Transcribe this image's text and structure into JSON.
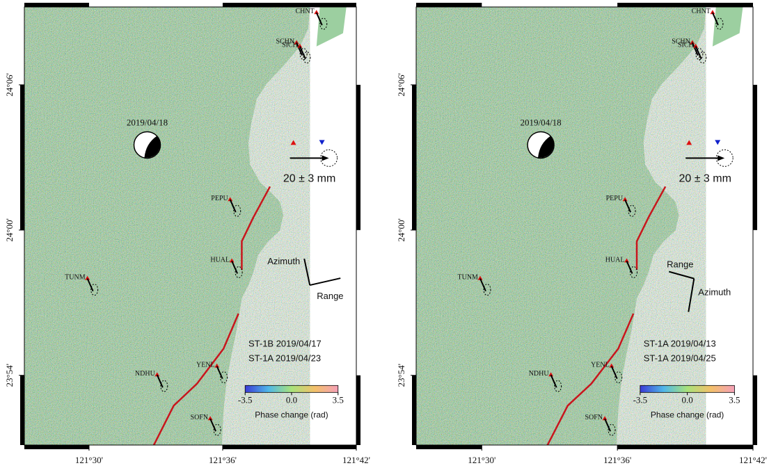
{
  "axes": {
    "xlim": [
      121.4516,
      121.7
    ],
    "ylim": [
      23.852,
      24.1536
    ],
    "xticks": [
      {
        "value": 121.5,
        "label": "121°30'"
      },
      {
        "value": 121.6,
        "label": "121°36'"
      },
      {
        "value": 121.7,
        "label": "121°42'"
      }
    ],
    "yticks": [
      {
        "value": 24.1,
        "label": "24°06'"
      },
      {
        "value": 24.0,
        "label": "24°00'"
      },
      {
        "value": 23.9,
        "label": "23°54'"
      }
    ]
  },
  "stations": [
    "CHNT",
    "SCHN",
    "SICH",
    "PEPU",
    "HUAL",
    "TUNM",
    "NDHU",
    "YENL",
    "SOFN"
  ],
  "event_date": "2019/04/18",
  "scale_label": "20 ± 3 mm",
  "look_labels": {
    "azimuth": "Azimuth",
    "range": "Range"
  },
  "colorbar": {
    "lim": [
      -3.5,
      3.5
    ],
    "ticks": [
      -3.5,
      {
        "value": 0,
        "label": "0.0"
      },
      3.5
    ],
    "label": "Phase change (rad)"
  },
  "panels": [
    {
      "acquisitions": [
        "ST-1B 2019/04/17",
        "ST-1A 2019/04/23"
      ]
    },
    {
      "acquisitions": [
        "ST-1A 2019/04/13",
        "ST-1A 2019/04/25"
      ]
    }
  ]
}
